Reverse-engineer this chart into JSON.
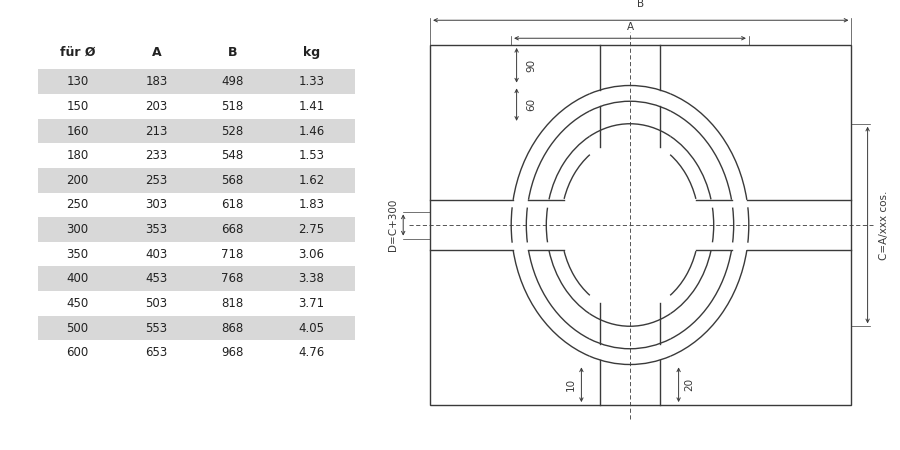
{
  "table_headers": [
    "für Ø",
    "A",
    "B",
    "kg"
  ],
  "table_rows": [
    [
      130,
      183,
      498,
      1.33
    ],
    [
      150,
      203,
      518,
      1.41
    ],
    [
      160,
      213,
      528,
      1.46
    ],
    [
      180,
      233,
      548,
      1.53
    ],
    [
      200,
      253,
      568,
      1.62
    ],
    [
      250,
      303,
      618,
      1.83
    ],
    [
      300,
      353,
      668,
      2.75
    ],
    [
      350,
      403,
      718,
      3.06
    ],
    [
      400,
      453,
      768,
      3.38
    ],
    [
      450,
      503,
      818,
      3.71
    ],
    [
      500,
      553,
      868,
      4.05
    ],
    [
      600,
      653,
      968,
      4.76
    ]
  ],
  "shaded_rows": [
    0,
    2,
    4,
    6,
    8,
    10
  ],
  "bg_color": "#ffffff",
  "row_shade_color": "#d8d8d8",
  "line_color": "#3a3a3a",
  "text_color": "#222222",
  "header_fontsize": 9,
  "table_fontsize": 8.5,
  "dim_label_90": "90",
  "dim_label_60": "60",
  "dim_label_10": "10",
  "dim_label_20": "20",
  "dim_label_A": "A",
  "dim_label_B": "B",
  "dim_label_C": "C=A/xxx cos.",
  "dim_label_D": "D=C+300"
}
